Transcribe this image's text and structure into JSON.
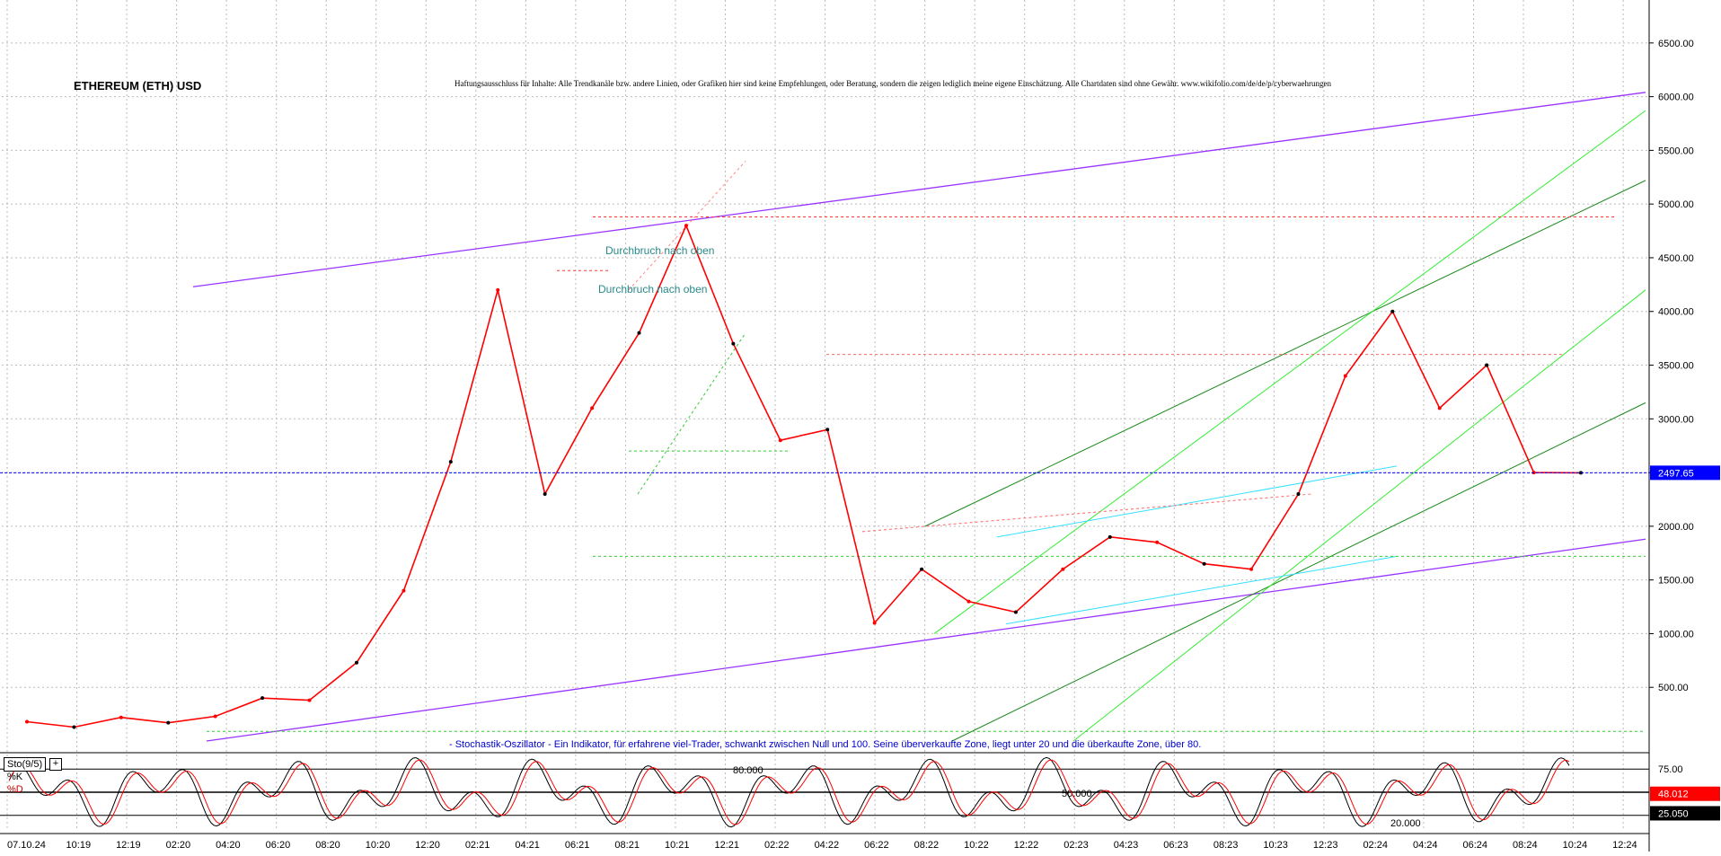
{
  "header": {
    "title": "ETHEREUM (ETH) USD",
    "disclaimer": "Haftungsausschluss für Inhalte: Alle Trendkanäle bzw. andere Linien, oder Grafiken hier sind keine Empfehlungen, oder Beratung, sondern die zeigen lediglich meine eigene Einschätzung. Alle Chartdaten sind ohne Gewähr. www.wikifolio.com/de/de/p/cyberwaehrungen"
  },
  "annotations": {
    "breakout_1": "Durchbruch nach oben",
    "breakout_2": "Durchbruch nach oben",
    "stoch_note": "- Stochastik-Oszillator - Ein Indikator, für erfahrene viel-Trader, schwankt zwischen Null und 100. Seine überverkaufte Zone, liegt unter 20 und die überkaufte Zone, über 80."
  },
  "indicator": {
    "name": "Sto(9/5)",
    "plus_icon": "+",
    "k_label": "%K",
    "d_label": "%D",
    "level_80": "80.000",
    "level_50": "50.000",
    "level_20": "20.000",
    "last_value_1": "48.012",
    "last_value_2": "25.050"
  },
  "price_axis": {
    "last_price": "2497.65"
  },
  "colors": {
    "up_candle": "#000000",
    "down_candle": "#ff0000",
    "channel": "#9933ff",
    "trend_dark": "#1a8a1a",
    "trend_light": "#33ee33",
    "cyan": "#33e0ff",
    "price_marker": "#0000ff"
  },
  "chart_data": [
    {
      "type": "line",
      "yticks": [
        "500.00",
        "1000.00",
        "1500.00",
        "2000.00",
        "2500.00",
        "3000.00",
        "3500.00",
        "4000.00",
        "4500.00",
        "5000.00",
        "5500.00",
        "6000.00",
        "6500.00"
      ],
      "xticks": [
        "07.10.24",
        "10:19",
        "12:19",
        "02:20",
        "04:20",
        "06:20",
        "08:20",
        "10:20",
        "12:20",
        "02:21",
        "04:21",
        "06:21",
        "08:21",
        "10:21",
        "12:21",
        "02:22",
        "04:22",
        "06:22",
        "08:22",
        "10:22",
        "12:22",
        "02:23",
        "04:23",
        "06:23",
        "08:23",
        "10:23",
        "12:23",
        "02:24",
        "04:24",
        "06:24",
        "08:24",
        "10:24",
        "12:24"
      ],
      "ylim": [
        0,
        6900
      ],
      "x": [
        "10:19",
        "12:19",
        "02:20",
        "04:20",
        "06:20",
        "08:20",
        "10:20",
        "12:20",
        "02:21",
        "04:21",
        "05:21",
        "06:21",
        "08:21",
        "10:21",
        "11:21",
        "12:21",
        "02:22",
        "04:22",
        "06:22",
        "08:22",
        "10:22",
        "12:22",
        "02:23",
        "04:23",
        "06:23",
        "08:23",
        "10:23",
        "12:23",
        "02:24",
        "03:24",
        "04:24",
        "06:24",
        "08:24",
        "10:24"
      ],
      "series": [
        {
          "values": [
            180,
            130,
            220,
            170,
            230,
            400,
            380,
            730,
            1400,
            2600,
            4200,
            2300,
            3100,
            3800,
            4800,
            3700,
            2800,
            2900,
            1100,
            1600,
            1300,
            1200,
            1600,
            1900,
            1850,
            1650,
            1600,
            2300,
            3400,
            4000,
            3100,
            3500,
            2500,
            2497.65
          ]
        }
      ],
      "last_price": 2497.65
    },
    {
      "type": "line",
      "ylim": [
        0,
        100
      ],
      "levels": [
        20,
        50,
        80
      ],
      "last_values": [
        48.012,
        25.05
      ]
    }
  ]
}
